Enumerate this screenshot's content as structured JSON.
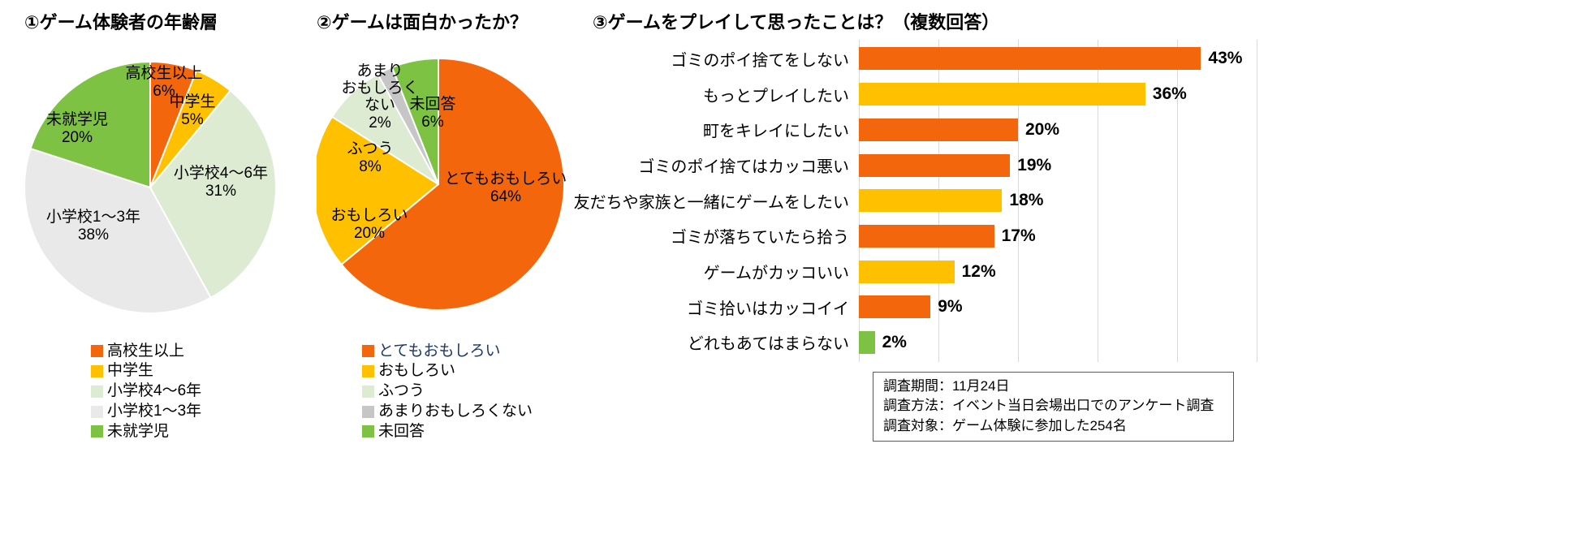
{
  "palette": {
    "orange": "#F4660B",
    "yellow": "#FFC000",
    "pale_green": "#DCEBD1",
    "light_gray": "#E9E9E9",
    "green": "#7DC242",
    "gray": "#C6C6C6",
    "gridline": "#D9D9D9",
    "text": "#000000",
    "legend_highlight_text": "#1F3864",
    "note_border": "#595959"
  },
  "chart_data": [
    {
      "type": "pie",
      "title": "①ゲーム体験者の年齢層",
      "value_suffix": "%",
      "start_angle_deg": -90,
      "direction": "clockwise",
      "legend_position": "bottom",
      "slices": [
        {
          "label": "高校生以上",
          "value": 6,
          "color_key": "orange"
        },
        {
          "label": "中学生",
          "value": 5,
          "color_key": "yellow"
        },
        {
          "label": "小学校4〜6年",
          "value": 31,
          "color_key": "pale_green"
        },
        {
          "label": "小学校1〜3年",
          "value": 38,
          "color_key": "light_gray"
        },
        {
          "label": "未就学児",
          "value": 20,
          "color_key": "green"
        }
      ]
    },
    {
      "type": "pie",
      "title": "②ゲームは面白かったか？",
      "value_suffix": "%",
      "start_angle_deg": -90,
      "direction": "clockwise",
      "legend_position": "bottom",
      "slices": [
        {
          "label": "とてもおもしろい",
          "value": 64,
          "color_key": "orange",
          "legend_text_color": "#1F3864"
        },
        {
          "label": "おもしろい",
          "value": 20,
          "color_key": "yellow"
        },
        {
          "label": "ふつう",
          "value": 8,
          "color_key": "pale_green"
        },
        {
          "label": "あまりおもしろくない",
          "value": 2,
          "color_key": "gray"
        },
        {
          "label": "未回答",
          "value": 6,
          "color_key": "green"
        }
      ]
    },
    {
      "type": "bar",
      "orientation": "horizontal",
      "title": "③ゲームをプレイして思ったことは？（複数回答）",
      "categories": [
        "ゴミのポイ捨てをしない",
        "もっとプレイしたい",
        "町をキレイにしたい",
        "ゴミのポイ捨てはカッコ悪い",
        "友だちや家族と一緒にゲームをしたい",
        "ゴミが落ちていたら拾う",
        "ゲームがカッコいい",
        "ゴミ拾いはカッコイイ",
        "どれもあてはまらない"
      ],
      "values": [
        43,
        36,
        20,
        19,
        18,
        17,
        12,
        9,
        2
      ],
      "colors": [
        "orange",
        "yellow",
        "orange",
        "orange",
        "yellow",
        "orange",
        "yellow",
        "orange",
        "green"
      ],
      "value_suffix": "%",
      "xlim": [
        0,
        50
      ],
      "grid_interval": 10,
      "grid": true,
      "note": [
        "調査期間：11月24日",
        "調査方法：イベント当日会場出口でのアンケート調査",
        "調査対象：ゲーム体験に参加した254名"
      ]
    }
  ]
}
